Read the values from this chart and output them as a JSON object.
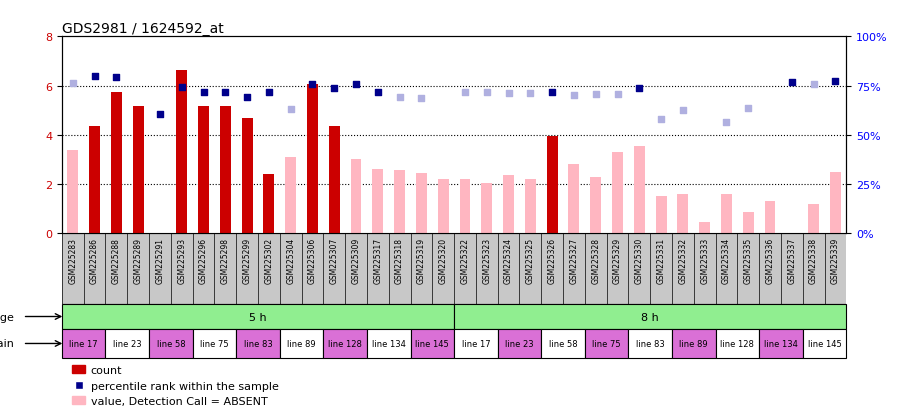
{
  "title": "GDS2981 / 1624592_at",
  "samples": [
    "GSM225283",
    "GSM225286",
    "GSM225288",
    "GSM225289",
    "GSM225291",
    "GSM225293",
    "GSM225296",
    "GSM225298",
    "GSM225299",
    "GSM225302",
    "GSM225304",
    "GSM225306",
    "GSM225307",
    "GSM225309",
    "GSM225317",
    "GSM225318",
    "GSM225319",
    "GSM225320",
    "GSM225322",
    "GSM225323",
    "GSM225324",
    "GSM225325",
    "GSM225326",
    "GSM225327",
    "GSM225328",
    "GSM225329",
    "GSM225330",
    "GSM225331",
    "GSM225332",
    "GSM225333",
    "GSM225334",
    "GSM225335",
    "GSM225336",
    "GSM225337",
    "GSM225338",
    "GSM225339"
  ],
  "count_present": [
    null,
    4.35,
    5.75,
    5.15,
    null,
    6.65,
    5.15,
    5.15,
    4.7,
    2.4,
    null,
    6.05,
    4.35,
    null,
    null,
    null,
    null,
    null,
    null,
    null,
    null,
    null,
    3.95,
    null,
    null,
    null,
    null,
    null,
    null,
    null,
    null,
    null,
    null,
    null,
    null,
    null
  ],
  "count_absent": [
    3.4,
    null,
    null,
    null,
    null,
    null,
    null,
    null,
    null,
    null,
    3.1,
    null,
    null,
    3.0,
    2.6,
    2.55,
    2.45,
    2.2,
    2.2,
    2.05,
    2.35,
    2.2,
    null,
    2.8,
    2.3,
    3.3,
    3.55,
    1.5,
    1.6,
    0.45,
    1.6,
    0.85,
    1.3,
    null,
    1.2,
    2.5
  ],
  "rank_present": [
    null,
    6.4,
    6.35,
    null,
    4.85,
    5.95,
    5.75,
    5.75,
    5.55,
    5.75,
    null,
    6.05,
    5.9,
    6.05,
    5.75,
    null,
    null,
    null,
    null,
    null,
    null,
    null,
    5.75,
    null,
    null,
    null,
    5.9,
    null,
    null,
    null,
    null,
    null,
    null,
    6.15,
    null,
    6.2
  ],
  "rank_absent": [
    6.1,
    null,
    null,
    null,
    null,
    null,
    null,
    null,
    null,
    null,
    5.05,
    null,
    null,
    null,
    null,
    5.55,
    5.5,
    null,
    5.75,
    5.75,
    5.7,
    5.7,
    null,
    5.6,
    5.65,
    5.65,
    null,
    4.65,
    5.0,
    null,
    4.5,
    5.1,
    null,
    null,
    6.05,
    null
  ],
  "age_groups": [
    {
      "label": "5 h",
      "start": 0,
      "end": 18,
      "color": "#90EE90"
    },
    {
      "label": "8 h",
      "start": 18,
      "end": 36,
      "color": "#90EE90"
    }
  ],
  "strain_groups": [
    {
      "label": "line 17",
      "start": 0,
      "end": 2,
      "color": "#DA70D6"
    },
    {
      "label": "line 23",
      "start": 2,
      "end": 4,
      "color": "#FFFFFF"
    },
    {
      "label": "line 58",
      "start": 4,
      "end": 6,
      "color": "#DA70D6"
    },
    {
      "label": "line 75",
      "start": 6,
      "end": 8,
      "color": "#FFFFFF"
    },
    {
      "label": "line 83",
      "start": 8,
      "end": 10,
      "color": "#DA70D6"
    },
    {
      "label": "line 89",
      "start": 10,
      "end": 12,
      "color": "#FFFFFF"
    },
    {
      "label": "line 128",
      "start": 12,
      "end": 14,
      "color": "#DA70D6"
    },
    {
      "label": "line 134",
      "start": 14,
      "end": 16,
      "color": "#FFFFFF"
    },
    {
      "label": "line 145",
      "start": 16,
      "end": 18,
      "color": "#DA70D6"
    },
    {
      "label": "line 17",
      "start": 18,
      "end": 20,
      "color": "#FFFFFF"
    },
    {
      "label": "line 23",
      "start": 20,
      "end": 22,
      "color": "#DA70D6"
    },
    {
      "label": "line 58",
      "start": 22,
      "end": 24,
      "color": "#FFFFFF"
    },
    {
      "label": "line 75",
      "start": 24,
      "end": 26,
      "color": "#DA70D6"
    },
    {
      "label": "line 83",
      "start": 26,
      "end": 28,
      "color": "#FFFFFF"
    },
    {
      "label": "line 89",
      "start": 28,
      "end": 30,
      "color": "#DA70D6"
    },
    {
      "label": "line 128",
      "start": 30,
      "end": 32,
      "color": "#FFFFFF"
    },
    {
      "label": "line 134",
      "start": 32,
      "end": 34,
      "color": "#DA70D6"
    },
    {
      "label": "line 145",
      "start": 34,
      "end": 36,
      "color": "#FFFFFF"
    }
  ],
  "ylim_left": [
    0,
    8
  ],
  "ylim_right": [
    0,
    100
  ],
  "yticks_left": [
    0,
    2,
    4,
    6,
    8
  ],
  "yticks_right": [
    0,
    25,
    50,
    75,
    100
  ],
  "bar_present_color": "#CC0000",
  "bar_absent_color": "#FFB6C1",
  "rank_present_color": "#00008B",
  "rank_absent_color": "#B0B0E0",
  "hgrid_values": [
    2,
    4,
    6
  ],
  "title_fontsize": 10,
  "xtick_fontsize": 5.5,
  "ytick_fontsize": 8,
  "row_label_fontsize": 8,
  "strain_fontsize": 6,
  "age_fontsize": 8,
  "legend_fontsize": 8
}
